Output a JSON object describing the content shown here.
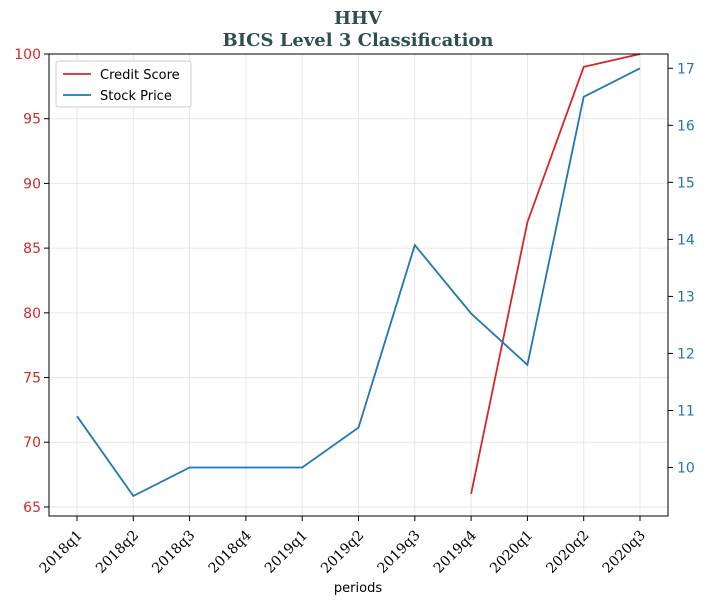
{
  "chart_data": {
    "type": "line",
    "title": "HHV",
    "subtitle": "BICS Level 3 Classification",
    "xlabel": "periods",
    "categories": [
      "2018q1",
      "2018q2",
      "2018q3",
      "2018q4",
      "2019q1",
      "2019q2",
      "2019q3",
      "2019q4",
      "2020q1",
      "2020q2",
      "2020q3"
    ],
    "series": [
      {
        "name": "Credit Score",
        "axis": "left",
        "color": "#d62728",
        "values": [
          null,
          null,
          null,
          null,
          null,
          null,
          null,
          66,
          87,
          99,
          100
        ]
      },
      {
        "name": "Stock Price",
        "axis": "right",
        "color": "#1f77b4",
        "values": [
          10.9,
          9.5,
          10.0,
          10.0,
          10.0,
          10.7,
          13.9,
          12.7,
          11.8,
          16.5,
          17.0
        ]
      }
    ],
    "y_left": {
      "ticks": [
        65,
        70,
        75,
        80,
        85,
        90,
        95,
        100
      ],
      "range": [
        64.3,
        100
      ],
      "color": "#d62728"
    },
    "y_right": {
      "ticks": [
        10,
        11,
        12,
        13,
        14,
        15,
        16,
        17
      ],
      "range": [
        9.15,
        17.25
      ],
      "color": "#1f77b4"
    },
    "grid": true,
    "legend": "top-left"
  }
}
